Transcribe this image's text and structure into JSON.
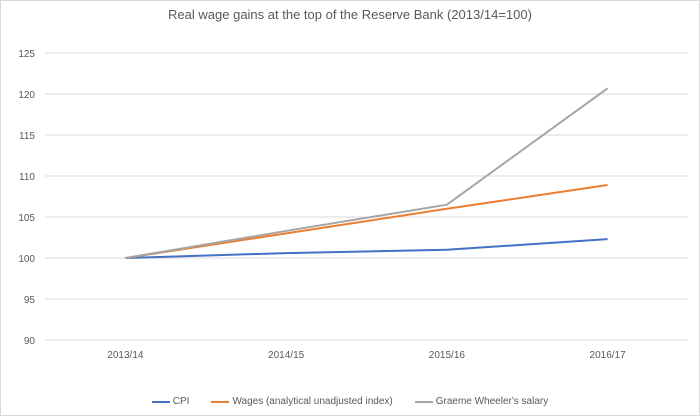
{
  "chart_data": {
    "type": "line",
    "title": "Real wage gains at the top of the Reserve Bank (2013/14=100)",
    "xlabel": "",
    "ylabel": "",
    "categories": [
      "2013/14",
      "2014/15",
      "2015/16",
      "2016/17"
    ],
    "y_ticks": [
      "125",
      "120",
      "115",
      "110",
      "105",
      "100",
      "95",
      "90"
    ],
    "ylim": [
      90,
      125
    ],
    "grid": true,
    "legend_position": "bottom",
    "series": [
      {
        "name": "CPI",
        "color": "#4472c4",
        "values": [
          100,
          100.6,
          101.0,
          102.3
        ]
      },
      {
        "name": "Wages (analytical unadjusted index)",
        "color": "#ed7d31",
        "values": [
          100,
          103.0,
          106.0,
          108.9
        ]
      },
      {
        "name": "Graeme Wheeler's salary",
        "color": "#a5a5a5",
        "values": [
          100,
          103.3,
          106.5,
          120.7
        ]
      }
    ]
  }
}
